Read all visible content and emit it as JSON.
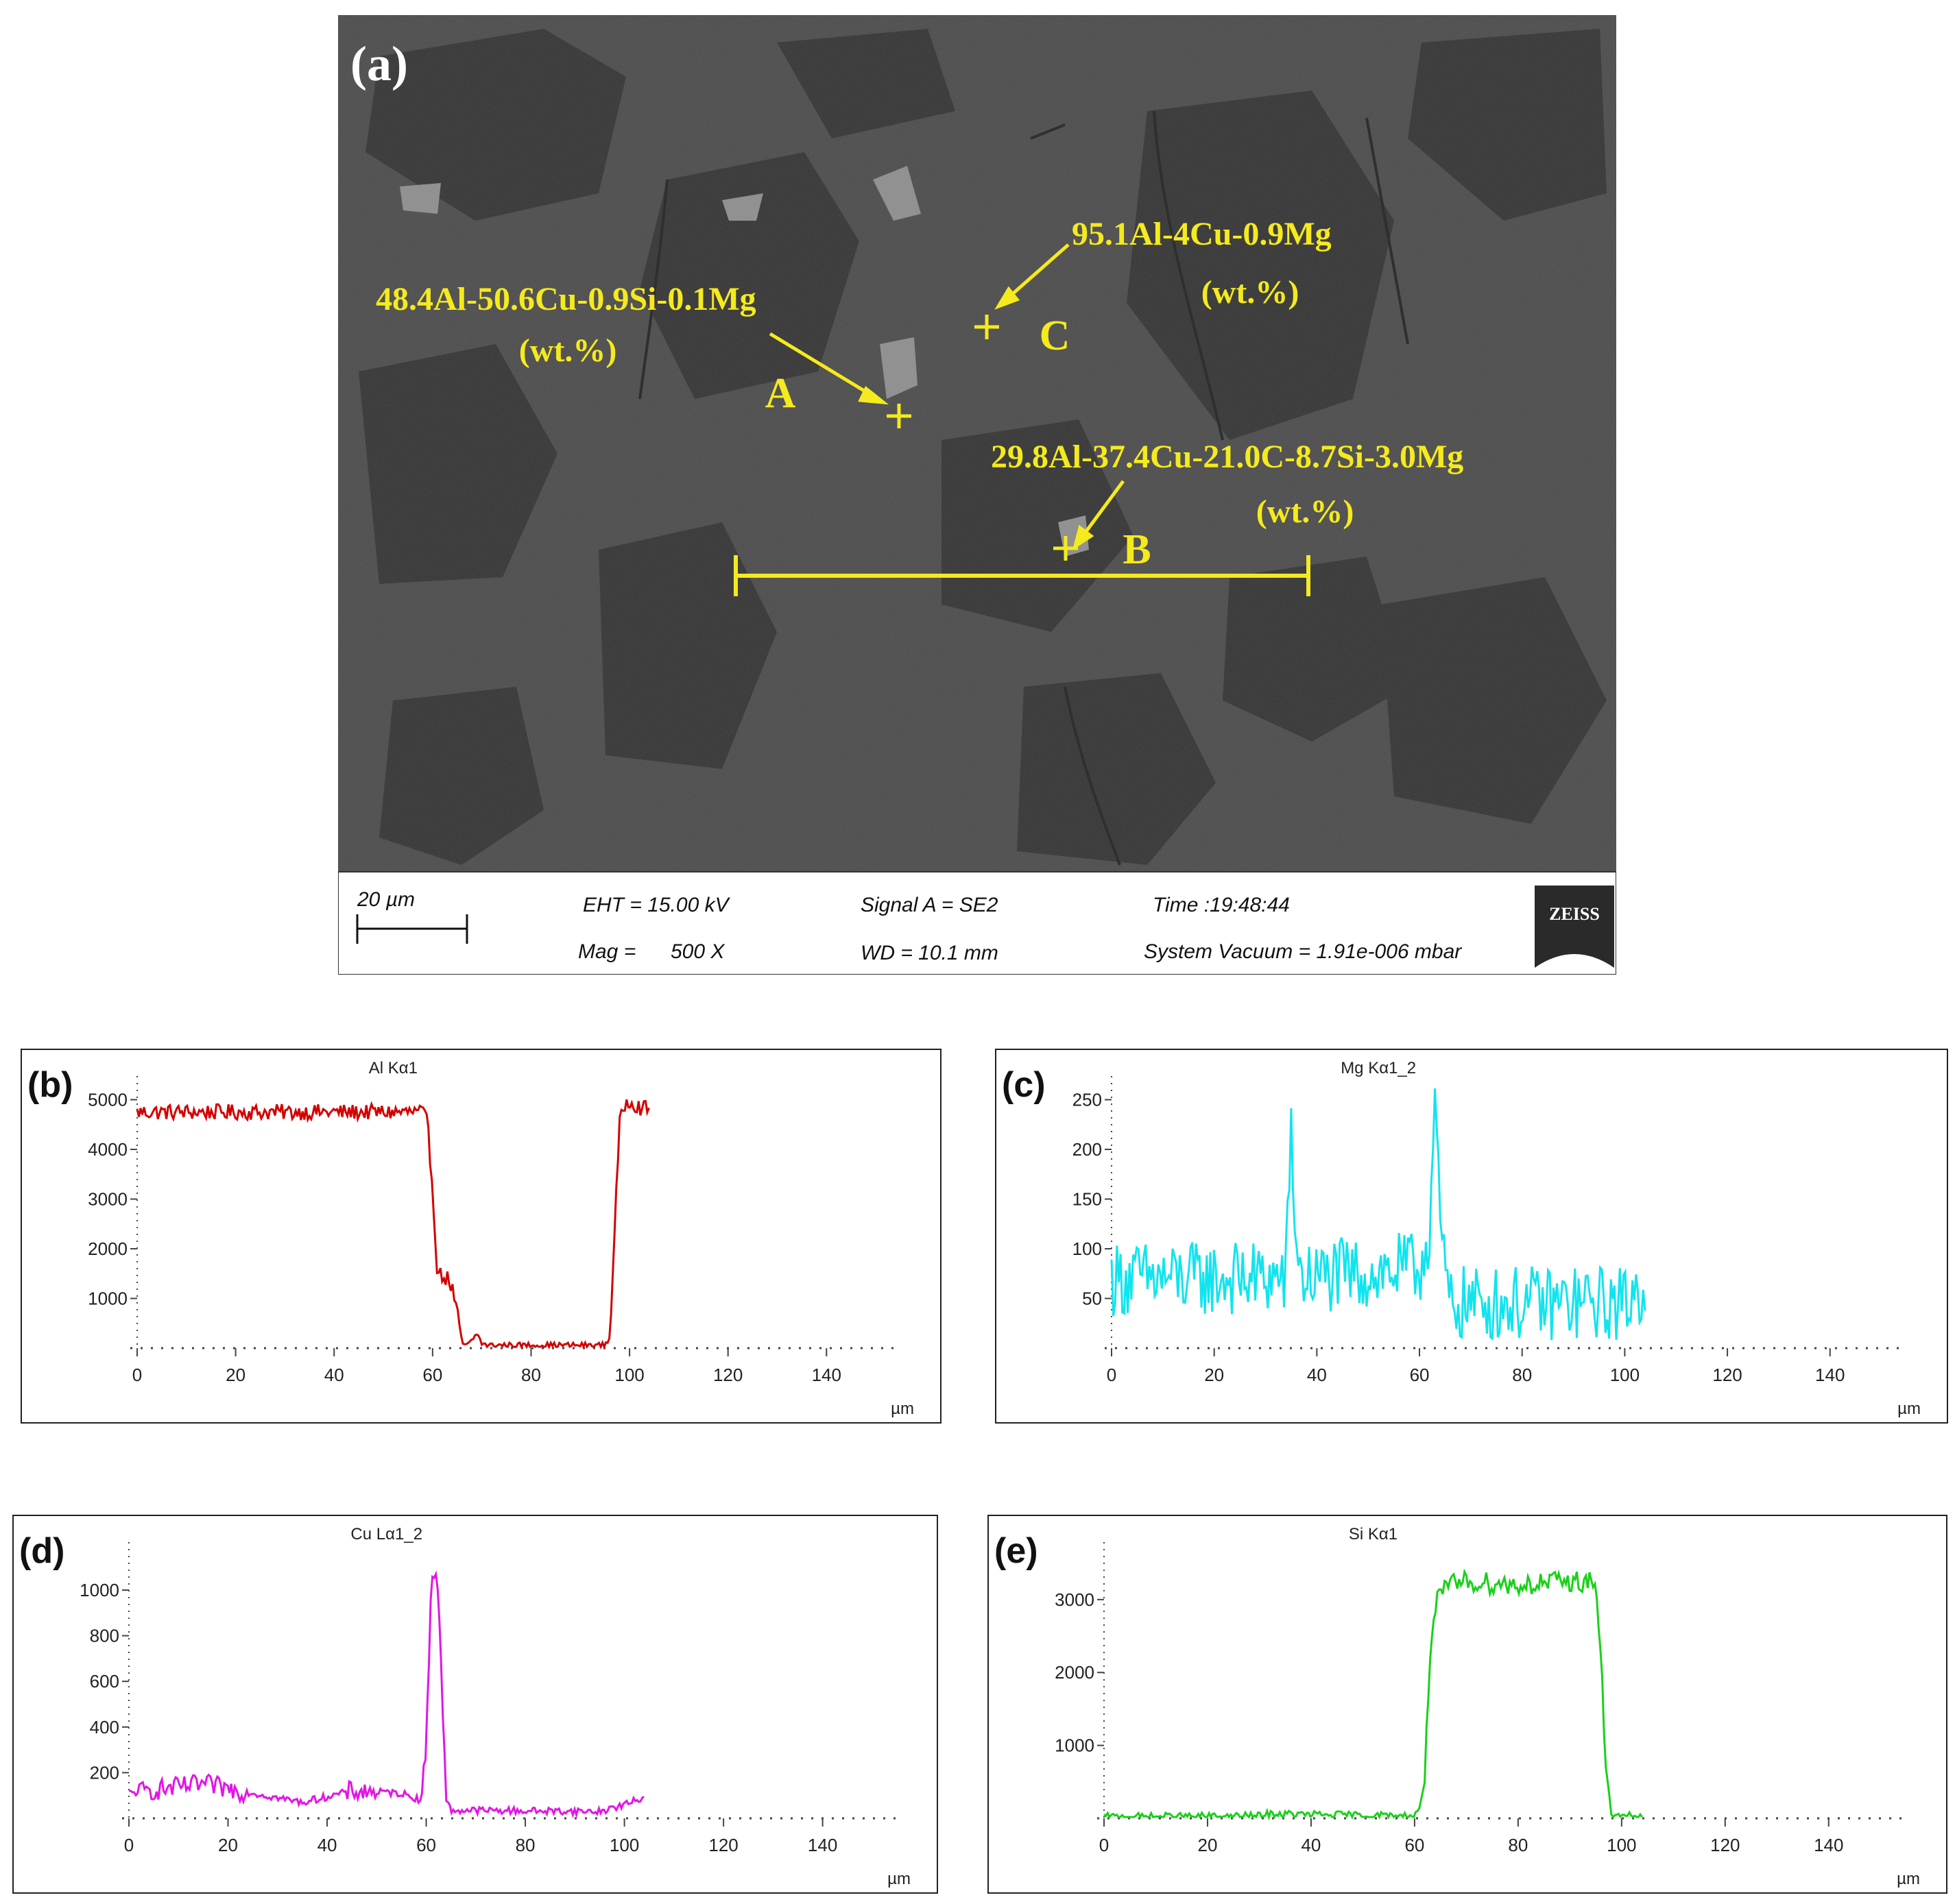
{
  "sem": {
    "panel_label": "(a)",
    "point_a": {
      "composition": "48.4Al-50.6Cu-0.9Si-0.1Mg",
      "unit": "(wt.%)",
      "label": "A"
    },
    "point_b": {
      "composition": "29.8Al-37.4Cu-21.0C-8.7Si-3.0Mg",
      "unit": "(wt.%)",
      "label": "B"
    },
    "point_c": {
      "composition": "95.1Al-4Cu-0.9Mg",
      "unit": "(wt.%)",
      "label": "C"
    },
    "info_bar": {
      "scale_bar": "20 µm",
      "eht": "EHT = 15.00 kV",
      "mag_label": "Mag =",
      "mag_value": "500 X",
      "signal": "Signal A = SE2",
      "wd": "WD = 10.1 mm",
      "time": "Time :19:48:44",
      "vacuum": "System Vacuum = 1.91e-006 mbar",
      "logo": "ZEISS"
    },
    "colors": {
      "annotation": "#f5ea1d",
      "background": "#3a3a3a",
      "info_bar_bg": "#ffffff"
    }
  },
  "chart_data": [
    {
      "id": "b",
      "type": "line",
      "panel_label": "(b)",
      "title": "Al Kα1",
      "xlabel": "µm",
      "ylabel": "",
      "xlim": [
        0,
        155
      ],
      "xticks": [
        0,
        20,
        40,
        60,
        80,
        100,
        120,
        140
      ],
      "ylim": [
        0,
        5200
      ],
      "yticks": [
        1000,
        2000,
        3000,
        4000,
        5000
      ],
      "series": [
        {
          "color": "#d40000",
          "x": [
            0,
            58,
            59,
            60,
            61,
            63,
            64,
            65,
            66,
            67,
            68,
            69,
            70,
            71,
            72,
            80,
            90,
            95,
            96,
            97,
            98,
            99,
            100,
            102,
            104
          ],
          "y": [
            4750,
            4750,
            4500,
            3200,
            1500,
            1400,
            1200,
            700,
            100,
            50,
            150,
            300,
            100,
            50,
            60,
            60,
            60,
            60,
            200,
            2500,
            4500,
            4900,
            5000,
            4850,
            4800
          ],
          "noise": 160
        }
      ]
    },
    {
      "id": "c",
      "type": "line",
      "panel_label": "(c)",
      "title": "Mg Kα1_2",
      "xlabel": "µm",
      "ylabel": "",
      "xlim": [
        0,
        155
      ],
      "xticks": [
        0,
        20,
        40,
        60,
        80,
        100,
        120,
        140
      ],
      "ylim": [
        0,
        260
      ],
      "yticks": [
        50,
        100,
        150,
        200,
        250
      ],
      "series": [
        {
          "color": "#12e4ee",
          "x": [
            0,
            34,
            35,
            36,
            37,
            60,
            62,
            63,
            64,
            65,
            66,
            67,
            70,
            100,
            104
          ],
          "y": [
            70,
            70,
            220,
            100,
            70,
            80,
            120,
            250,
            120,
            80,
            40,
            45,
            45,
            45,
            65
          ],
          "noise": 38
        }
      ]
    },
    {
      "id": "d",
      "type": "line",
      "panel_label": "(d)",
      "title": "Cu Lα1_2",
      "xlabel": "µm",
      "ylabel": "",
      "xlim": [
        0,
        155
      ],
      "xticks": [
        0,
        20,
        40,
        60,
        80,
        100,
        120,
        140
      ],
      "ylim": [
        0,
        1150
      ],
      "yticks": [
        200,
        400,
        600,
        800,
        1000
      ],
      "series": [
        {
          "color": "#e414e6",
          "x": [
            0,
            15,
            25,
            35,
            45,
            55,
            59,
            60,
            61,
            62,
            63,
            64,
            65,
            70,
            95,
            100,
            104
          ],
          "y": [
            110,
            150,
            110,
            70,
            120,
            110,
            80,
            300,
            1050,
            1100,
            700,
            80,
            35,
            35,
            30,
            60,
            90
          ],
          "noise": 45
        }
      ]
    },
    {
      "id": "e",
      "type": "line",
      "panel_label": "(e)",
      "title": "Si Kα1",
      "xlabel": "µm",
      "ylabel": "",
      "xlim": [
        0,
        155
      ],
      "xticks": [
        0,
        20,
        40,
        60,
        80,
        100,
        120,
        140
      ],
      "ylim": [
        0,
        3600
      ],
      "yticks": [
        1000,
        2000,
        3000
      ],
      "series": [
        {
          "color": "#19d119",
          "x": [
            0,
            30,
            32,
            60,
            61,
            62,
            63,
            64,
            65,
            67,
            70,
            80,
            90,
            95,
            96,
            97,
            98,
            99,
            100,
            104
          ],
          "y": [
            20,
            30,
            60,
            30,
            150,
            600,
            2300,
            2900,
            3050,
            3200,
            3250,
            3200,
            3250,
            3250,
            2200,
            600,
            80,
            30,
            30,
            30
          ],
          "noise": 150
        }
      ]
    }
  ]
}
